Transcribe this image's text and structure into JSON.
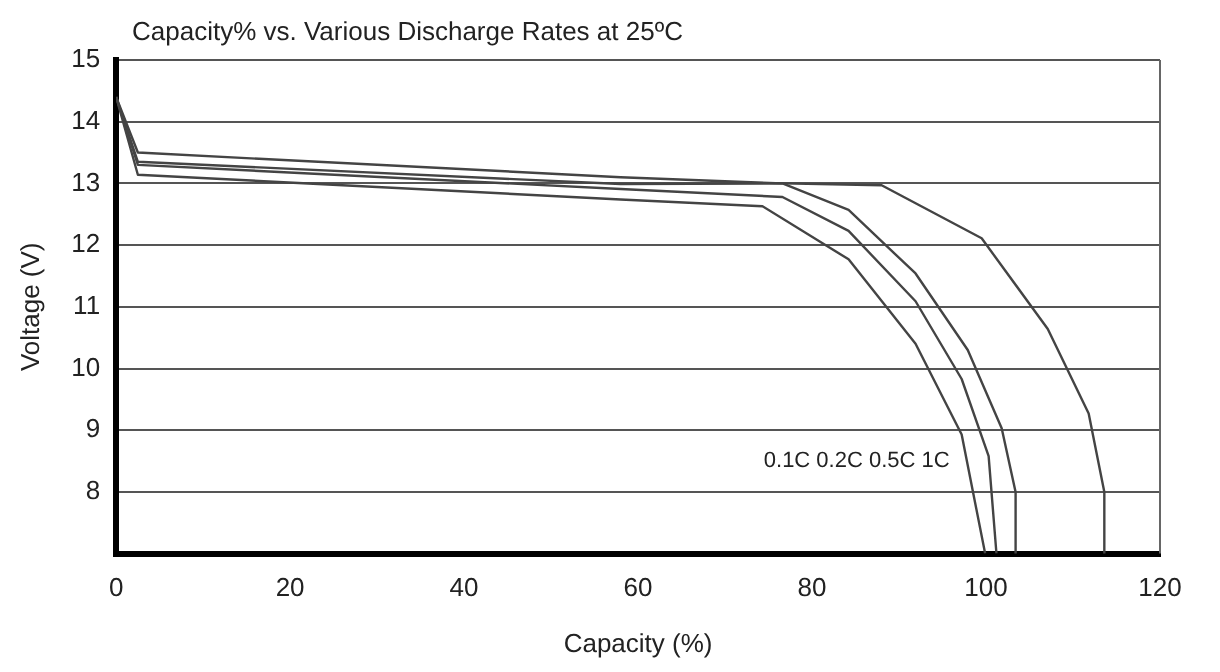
{
  "chart_data": {
    "type": "line",
    "title": "Capacity% vs. Various Discharge Rates at 25ºC",
    "xlabel": "Capacity (%)",
    "ylabel": "Voltage (V)",
    "xlim": [
      0,
      120
    ],
    "xticks": [
      0,
      20,
      40,
      60,
      80,
      100,
      120
    ],
    "ylim": [
      7,
      15
    ],
    "yticks": [
      8,
      9,
      10,
      11,
      12,
      13,
      14,
      15
    ],
    "grid": "y",
    "legend": false,
    "marker": "none",
    "line_style": "solid",
    "series": [
      {
        "name": "0.1C",
        "color": "#444444",
        "x": [
          0,
          2.5,
          58,
          74.3,
          84.2,
          91.9,
          97.2,
          99.9
        ],
        "values": [
          14.4,
          13.14,
          12.74,
          12.63,
          11.77,
          10.4,
          8.93,
          7
        ]
      },
      {
        "name": "0.2C",
        "color": "#444444",
        "x": [
          0,
          2.5,
          58,
          76.6,
          84.2,
          91.9,
          97.2,
          100.3,
          101.2
        ],
        "values": [
          14.4,
          13.3,
          12.91,
          12.78,
          12.23,
          11.09,
          9.83,
          8.58,
          7
        ]
      },
      {
        "name": "0.5C",
        "color": "#444444",
        "x": [
          0,
          2.5,
          58,
          76.6,
          84.2,
          91.9,
          97.9,
          101.8,
          103.4,
          103.4
        ],
        "values": [
          14.4,
          13.35,
          12.99,
          13.0,
          12.57,
          11.54,
          10.3,
          9.03,
          8.0,
          7
        ]
      },
      {
        "name": "1C",
        "color": "#444444",
        "x": [
          0,
          2.5,
          58,
          76.6,
          88,
          99.5,
          107.1,
          111.8,
          113.6,
          113.6
        ],
        "values": [
          14.4,
          13.5,
          13.1,
          13.0,
          12.97,
          12.11,
          10.64,
          9.27,
          8.0,
          7
        ]
      }
    ]
  }
}
